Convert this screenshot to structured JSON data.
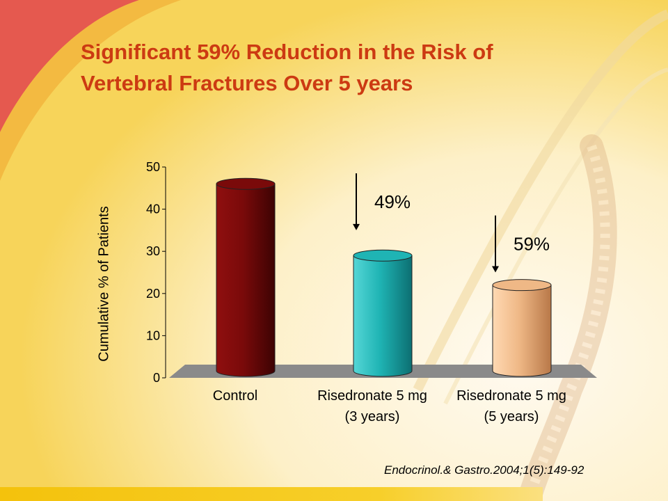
{
  "slide": {
    "title_line1": "Significant 59% Reduction in the Risk of",
    "title_line2": "Vertebral Fractures Over 5 years",
    "citation": "Endocrinol.& Gastro.2004;1(5):149-92"
  },
  "chart_data": {
    "type": "bar",
    "title": "Significant 59% Reduction in the Risk of Vertebral Fractures Over 5 years",
    "ylabel": "Cumulative % of Patients",
    "xlabel": "",
    "ylim": [
      0,
      50
    ],
    "yticks": [
      "0",
      "10",
      "20",
      "30",
      "40",
      "50"
    ],
    "categories": [
      [
        "Control"
      ],
      [
        "Risedronate 5 mg",
        "(3 years)"
      ],
      [
        "Risedronate 5 mg",
        "(5 years)"
      ]
    ],
    "values": [
      46,
      29,
      22
    ],
    "colors": [
      "#7a0a0a",
      "#1fb4b4",
      "#efb886"
    ],
    "annotations": [
      {
        "text": "49%",
        "arrow_from": 48.5,
        "arrow_to": 35,
        "category_index": 1
      },
      {
        "text": "59%",
        "arrow_from": 38.5,
        "arrow_to": 25,
        "category_index": 2
      }
    ],
    "grid": false,
    "legend": "none"
  }
}
